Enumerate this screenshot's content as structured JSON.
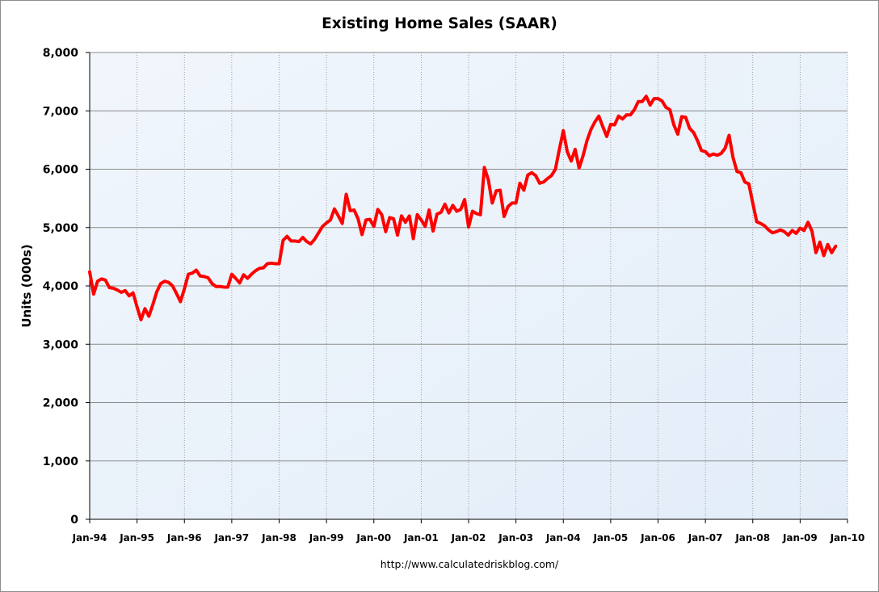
{
  "chart_data": {
    "type": "line",
    "title": "Existing Home Sales (SAAR)",
    "ylabel": "Units (000s)",
    "xlabel": "",
    "source": "http://www.calculatedriskblog.com/",
    "x_tick_labels": [
      "Jan-94",
      "Jan-95",
      "Jan-96",
      "Jan-97",
      "Jan-98",
      "Jan-99",
      "Jan-00",
      "Jan-01",
      "Jan-02",
      "Jan-03",
      "Jan-04",
      "Jan-05",
      "Jan-06",
      "Jan-07",
      "Jan-08",
      "Jan-09",
      "Jan-10"
    ],
    "y_tick_labels": [
      "0",
      "1,000",
      "2,000",
      "3,000",
      "4,000",
      "5,000",
      "6,000",
      "7,000",
      "8,000"
    ],
    "ylim": [
      0,
      8000
    ],
    "xlim": [
      "1994-01",
      "2010-01"
    ],
    "grid": true,
    "colors": {
      "line": "#ff0000",
      "plot_background": "#eaf2fb",
      "gridline": "#8a8a8a"
    },
    "series": [
      {
        "start": "1994-01",
        "frequency": "monthly",
        "values": [
          4240,
          3860,
          4080,
          4120,
          4100,
          3970,
          3960,
          3930,
          3890,
          3920,
          3830,
          3880,
          3640,
          3420,
          3610,
          3480,
          3680,
          3900,
          4040,
          4080,
          4060,
          4000,
          3870,
          3730,
          3950,
          4200,
          4220,
          4270,
          4170,
          4160,
          4140,
          4040,
          3990,
          3990,
          3980,
          3980,
          4200,
          4130,
          4050,
          4190,
          4130,
          4200,
          4260,
          4300,
          4310,
          4380,
          4390,
          4380,
          4380,
          4780,
          4850,
          4770,
          4770,
          4760,
          4830,
          4760,
          4720,
          4800,
          4910,
          5020,
          5080,
          5130,
          5320,
          5200,
          5070,
          5570,
          5290,
          5300,
          5150,
          4880,
          5130,
          5140,
          5020,
          5310,
          5220,
          4930,
          5170,
          5150,
          4870,
          5200,
          5090,
          5200,
          4810,
          5220,
          5130,
          5020,
          5300,
          4940,
          5230,
          5260,
          5400,
          5250,
          5380,
          5280,
          5310,
          5480,
          5010,
          5280,
          5240,
          5220,
          6030,
          5820,
          5420,
          5630,
          5640,
          5190,
          5360,
          5420,
          5420,
          5760,
          5640,
          5900,
          5940,
          5890,
          5760,
          5780,
          5840,
          5890,
          6000,
          6340,
          6660,
          6300,
          6140,
          6340,
          6020,
          6230,
          6490,
          6680,
          6810,
          6910,
          6730,
          6560,
          6770,
          6760,
          6910,
          6860,
          6930,
          6930,
          7020,
          7160,
          7160,
          7250,
          7100,
          7210,
          7210,
          7170,
          7060,
          7020,
          6760,
          6600,
          6900,
          6890,
          6700,
          6630,
          6490,
          6320,
          6300,
          6230,
          6260,
          6240,
          6270,
          6360,
          6580,
          6200,
          5960,
          5940,
          5780,
          5750,
          5420,
          5100,
          5070,
          5030,
          4960,
          4910,
          4930,
          4960,
          4930,
          4870,
          4950,
          4900,
          4990,
          4950,
          5090,
          4940,
          4570,
          4750,
          4520,
          4710,
          4570,
          4680
        ]
      }
    ]
  }
}
